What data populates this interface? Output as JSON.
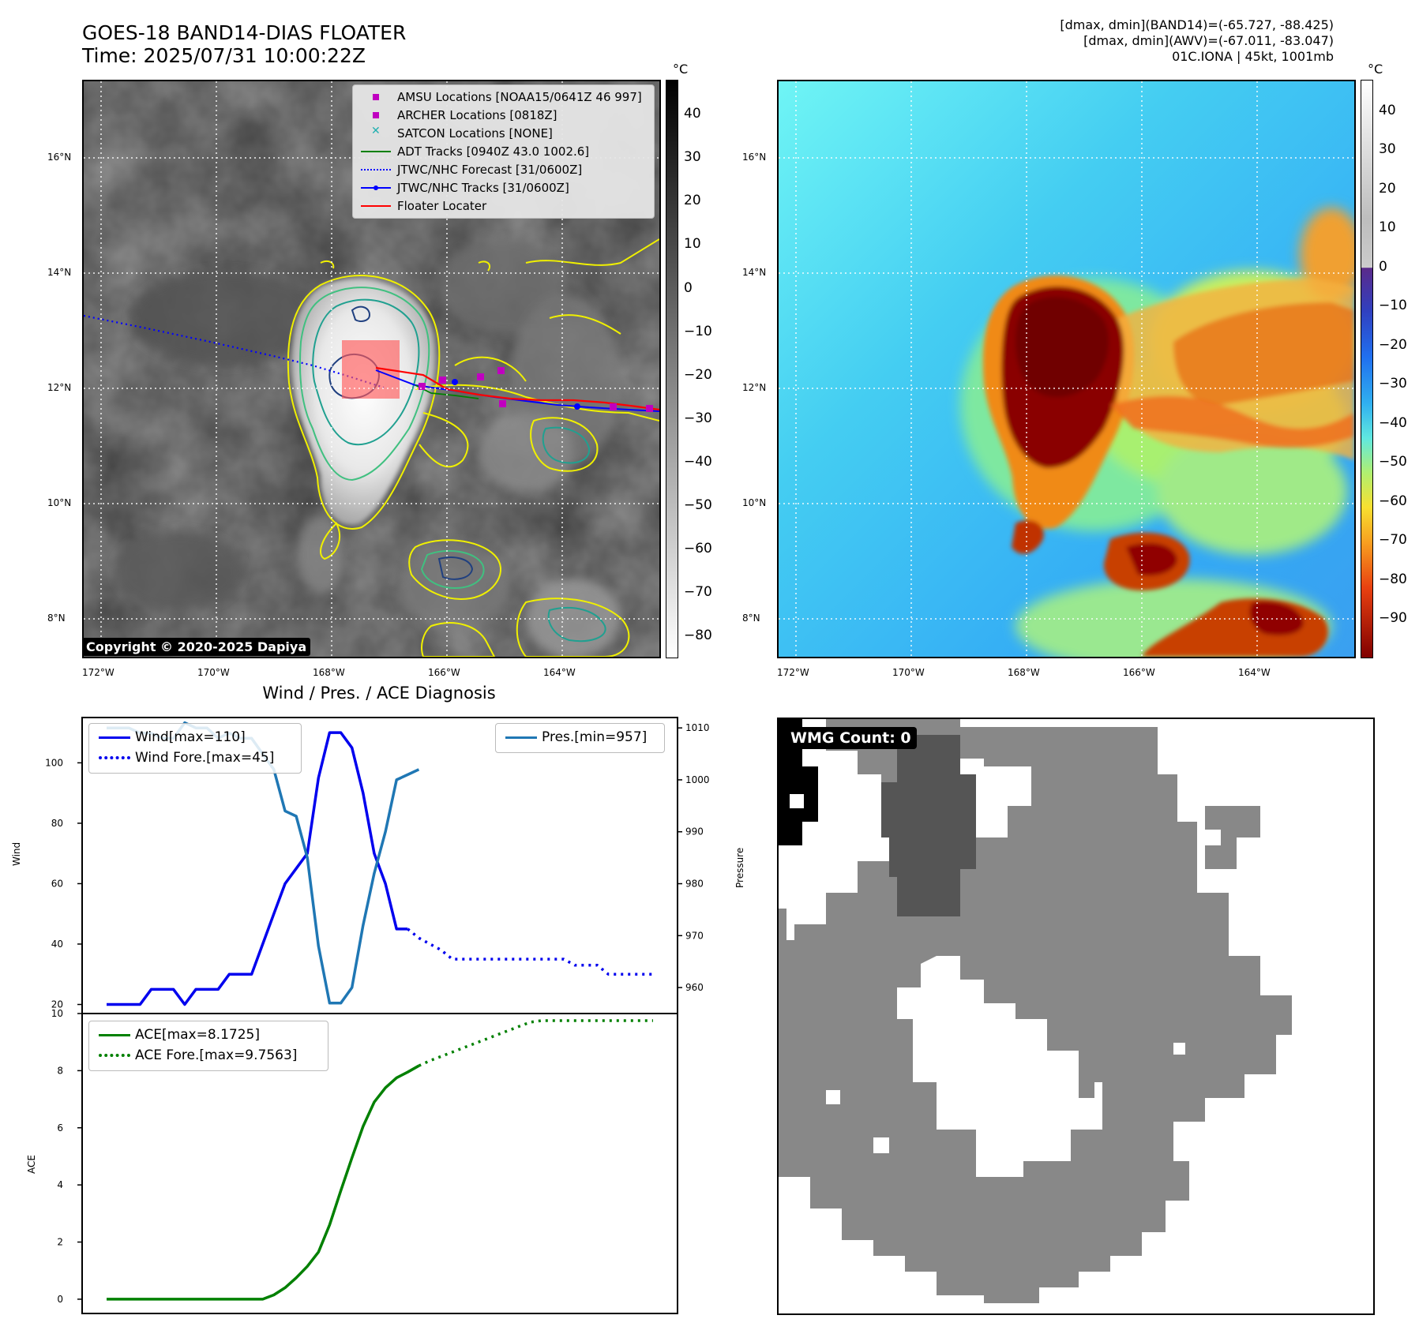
{
  "header": {
    "title_line1": "GOES-18 BAND14-DIAS FLOATER",
    "title_line2": "Time: 2025/07/31 10:00:22Z",
    "info_line1": "[dmax, dmin](BAND14)=(-65.727, -88.425)",
    "info_line2": "[dmax, dmin](AWV)=(-67.011, -83.047)",
    "info_line3": "01C.IONA | 45kt, 1001mb"
  },
  "map_axes": {
    "lon_labels": [
      "172°W",
      "170°W",
      "168°W",
      "166°W",
      "164°W"
    ],
    "lat_labels": [
      "16°N",
      "14°N",
      "12°N",
      "10°N",
      "8°N"
    ],
    "colorbar_unit": "°C"
  },
  "ir_colorbar": {
    "ticks": [
      "40",
      "30",
      "20",
      "10",
      "0",
      "−10",
      "−20",
      "−30",
      "−40",
      "−50",
      "−60",
      "−70",
      "−80"
    ],
    "colormap": "gray",
    "range": [
      -85,
      48
    ]
  },
  "awv_colorbar": {
    "ticks": [
      "40",
      "30",
      "20",
      "10",
      "0",
      "−10",
      "−20",
      "−30",
      "−40",
      "−50",
      "−60",
      "−70",
      "−80",
      "−90"
    ],
    "colormap": "jet",
    "range": [
      -100,
      48
    ]
  },
  "copyright": "Copyright © 2020-2025 Dapiya",
  "map_legend": [
    {
      "label": "AMSU Locations [NOAA15/0641Z 46 997]",
      "marker": "square",
      "color": "#c000c0"
    },
    {
      "label": "ARCHER Locations [0818Z]",
      "marker": "square",
      "color": "#c000c0"
    },
    {
      "label": "SATCON Locations [NONE]",
      "marker": "x",
      "color": "#20b0b0"
    },
    {
      "label": "ADT Tracks [0940Z 43.0 1002.6]",
      "marker": "line",
      "color": "#008000"
    },
    {
      "label": "JTWC/NHC Forecast [31/0600Z]",
      "marker": "dotted",
      "color": "#0000ff"
    },
    {
      "label": "JTWC/NHC Tracks [31/0600Z]",
      "marker": "line-dot",
      "color": "#0000ff"
    },
    {
      "label": "Floater Locater",
      "marker": "line",
      "color": "#ff0000"
    }
  ],
  "diag_title": "Wind / Pres. / ACE Diagnosis",
  "wmg_label": "WMG Count: 0",
  "colors": {
    "wind": "#0000ee",
    "pressure": "#1f77b4",
    "ace": "#008000",
    "contour_yellow": "#f0f000",
    "contour_teal": "#20a090",
    "contour_navy": "#204080"
  },
  "chart_data": [
    {
      "type": "line",
      "ylabel": "Wind",
      "ylim": [
        17,
        115
      ],
      "yticks": [
        20,
        40,
        60,
        80,
        100
      ],
      "x": [
        0,
        1,
        2,
        3,
        4,
        5,
        6,
        7,
        8,
        9,
        10,
        11,
        12,
        13,
        14,
        15,
        16,
        17,
        18,
        19,
        20,
        21,
        22,
        23,
        24,
        25,
        26,
        27,
        28,
        29,
        30,
        31,
        32,
        33,
        34,
        35,
        36,
        37,
        38,
        39,
        40,
        41,
        42,
        43,
        44,
        45,
        46,
        47,
        48,
        49
      ],
      "series": [
        {
          "name": "Wind[max=110]",
          "values": [
            20,
            20,
            20,
            20,
            25,
            25,
            25,
            20,
            25,
            25,
            25,
            30,
            30,
            30,
            40,
            50,
            60,
            65,
            70,
            95,
            110,
            110,
            105,
            90,
            70,
            60,
            45,
            45,
            null,
            null,
            null,
            null,
            null,
            null,
            null,
            null,
            null,
            null,
            null,
            null,
            null,
            null,
            null,
            null,
            null,
            null,
            null,
            null,
            null,
            null
          ]
        },
        {
          "name": "Wind Fore.[max=45]",
          "values": [
            null,
            null,
            null,
            null,
            null,
            null,
            null,
            null,
            null,
            null,
            null,
            null,
            null,
            null,
            null,
            null,
            null,
            null,
            null,
            null,
            null,
            null,
            null,
            null,
            null,
            null,
            null,
            45,
            42,
            40,
            38,
            35,
            35,
            35,
            35,
            35,
            35,
            35,
            35,
            35,
            35,
            35,
            33,
            33,
            33,
            30,
            30,
            30,
            30,
            30
          ]
        }
      ]
    },
    {
      "type": "line",
      "ylabel": "Pressure",
      "ylim": [
        955,
        1012
      ],
      "yticks": [
        960,
        970,
        980,
        990,
        1000,
        1010
      ],
      "x": [
        0,
        1,
        2,
        3,
        4,
        5,
        6,
        7,
        8,
        9,
        10,
        11,
        12,
        13,
        14,
        15,
        16,
        17,
        18,
        19,
        20,
        21,
        22,
        23,
        24,
        25,
        26,
        27,
        28
      ],
      "series": [
        {
          "name": "Pres.[min=957]",
          "values": [
            1010,
            1010,
            1010,
            1009,
            1009,
            1008,
            1008,
            1011,
            1010,
            1010,
            1008,
            1009,
            1008,
            1008,
            1005,
            1002,
            994,
            993,
            985,
            968,
            957,
            957,
            960,
            972,
            982,
            990,
            1000,
            1001,
            1002
          ]
        }
      ]
    },
    {
      "type": "line",
      "ylabel": "ACE",
      "ylim": [
        -0.5,
        10
      ],
      "yticks": [
        0,
        2,
        4,
        6,
        8,
        10
      ],
      "x": [
        0,
        1,
        2,
        3,
        4,
        5,
        6,
        7,
        8,
        9,
        10,
        11,
        12,
        13,
        14,
        15,
        16,
        17,
        18,
        19,
        20,
        21,
        22,
        23,
        24,
        25,
        26,
        27,
        28,
        29,
        30,
        31,
        32,
        33,
        34,
        35,
        36,
        37,
        38,
        39,
        40,
        41,
        42,
        43,
        44,
        45,
        46,
        47,
        48,
        49
      ],
      "series": [
        {
          "name": "ACE[max=8.1725]",
          "values": [
            0,
            0,
            0,
            0,
            0,
            0,
            0,
            0,
            0,
            0,
            0,
            0,
            0,
            0,
            0,
            0.15,
            0.4,
            0.75,
            1.15,
            1.65,
            2.6,
            3.8,
            4.95,
            6.05,
            6.9,
            7.4,
            7.75,
            7.95,
            8.17,
            null,
            null,
            null,
            null,
            null,
            null,
            null,
            null,
            null,
            null,
            null,
            null,
            null,
            null,
            null,
            null,
            null,
            null,
            null,
            null,
            null
          ]
        },
        {
          "name": "ACE Fore.[max=9.7563]",
          "values": [
            null,
            null,
            null,
            null,
            null,
            null,
            null,
            null,
            null,
            null,
            null,
            null,
            null,
            null,
            null,
            null,
            null,
            null,
            null,
            null,
            null,
            null,
            null,
            null,
            null,
            null,
            null,
            null,
            8.17,
            8.35,
            8.5,
            8.65,
            8.8,
            8.95,
            9.1,
            9.25,
            9.4,
            9.55,
            9.7,
            9.75,
            9.75,
            9.75,
            9.75,
            9.75,
            9.75,
            9.75,
            9.75,
            9.75,
            9.75,
            9.75
          ]
        }
      ]
    }
  ]
}
